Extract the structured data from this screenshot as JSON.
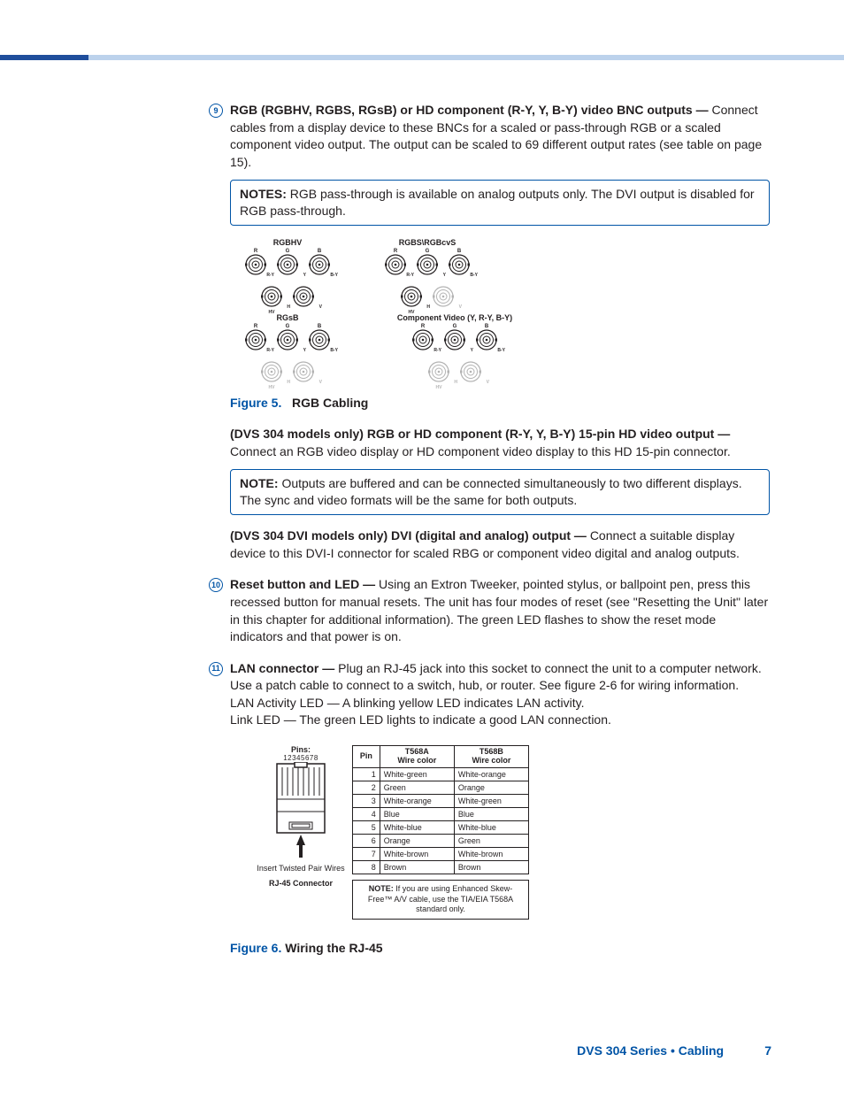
{
  "item9": {
    "heading": "RGB (RGBHV, RGBS, RGsB) or HD component (R-Y, Y, B-Y) video BNC outputs —",
    "body": "Connect cables from a display device to these BNCs for a scaled or pass-through RGB or a scaled component video output. The output can be scaled to 69 different output rates (see table on page 15)."
  },
  "note1": {
    "label": "NOTES:",
    "text": "RGB pass-through is available on analog outputs only. The DVI output is disabled for RGB pass-through."
  },
  "bnc": {
    "groups": [
      {
        "title": "RGBHV",
        "rows": [
          [
            {
              "top": "R",
              "br": "R-Y",
              "off": false
            },
            {
              "top": "G",
              "br": "Y",
              "off": false
            },
            {
              "top": "B",
              "br": "B-Y",
              "off": false
            }
          ],
          [
            {
              "top": "",
              "br": "H",
              "b": "HV",
              "off": false
            },
            {
              "top": "",
              "br": "V",
              "off": false
            }
          ]
        ]
      },
      {
        "title": "RGBS\\RGBcvS",
        "rows": [
          [
            {
              "top": "R",
              "br": "R-Y",
              "off": false
            },
            {
              "top": "G",
              "br": "Y",
              "off": false
            },
            {
              "top": "B",
              "br": "B-Y",
              "off": false
            }
          ],
          [
            {
              "top": "",
              "br": "H",
              "b": "HV",
              "off": false
            },
            {
              "top": "",
              "br": "V",
              "off": true
            }
          ]
        ]
      },
      {
        "title": "RGsB",
        "rows": [
          [
            {
              "top": "R",
              "br": "R-Y",
              "off": false
            },
            {
              "top": "G",
              "br": "Y",
              "off": false
            },
            {
              "top": "B",
              "br": "B-Y",
              "off": false
            }
          ],
          [
            {
              "top": "",
              "br": "H",
              "b": "HV",
              "off": true
            },
            {
              "top": "",
              "br": "V",
              "off": true
            }
          ]
        ]
      },
      {
        "title": "Component Video (Y, R-Y, B-Y)",
        "rows": [
          [
            {
              "top": "R",
              "br": "R-Y",
              "off": false
            },
            {
              "top": "G",
              "br": "Y",
              "off": false
            },
            {
              "top": "B",
              "br": "B-Y",
              "off": false
            }
          ],
          [
            {
              "top": "",
              "br": "H",
              "b": "HV",
              "off": true
            },
            {
              "top": "",
              "br": "V",
              "off": true
            }
          ]
        ]
      }
    ]
  },
  "fig5": {
    "num": "Figure 5.",
    "title": "RGB Cabling"
  },
  "dvs304": {
    "heading": "(DVS 304 models only) RGB or HD component (R-Y, Y, B-Y) 15-pin HD video output —",
    "body": "Connect an RGB video display or HD component video display to this HD 15-pin connector."
  },
  "note2": {
    "label": "NOTE:",
    "text": "Outputs are buffered and can be connected simultaneously to two different displays. The sync and video formats will be the same for both outputs."
  },
  "dvi": {
    "heading": "(DVS 304 DVI models only) DVI (digital and analog) output —",
    "body": "Connect a suitable display device to this DVI-I connector for scaled RBG or component video digital and analog outputs."
  },
  "item10": {
    "heading": "Reset button and LED —",
    "body": "Using an Extron Tweeker, pointed stylus, or ballpoint pen, press this recessed button for manual resets. The unit has four modes of reset (see \"Resetting the Unit\" later in this chapter for additional information). The green LED flashes to show the reset mode indicators and that power is on."
  },
  "item11": {
    "heading": "LAN connector —",
    "body": "Plug an RJ-45 jack into this socket to connect the unit to a computer network. Use a patch cable to connect to a switch, hub, or router. See figure 2-6 for wiring information.",
    "line2": "LAN Activity LED — A blinking yellow LED indicates LAN activity.",
    "line3": "Link LED — The green LED lights to indicate a good LAN connection."
  },
  "rj45": {
    "pins_label": "Pins:",
    "pin_nums": "12345678",
    "insert": "Insert Twisted Pair Wires",
    "connector": "RJ-45 Connector",
    "headers": {
      "pin": "Pin",
      "a": "T568A Wire color",
      "b": "T568B Wire color"
    },
    "rows": [
      {
        "pin": "1",
        "a": "White-green",
        "b": "White-orange"
      },
      {
        "pin": "2",
        "a": "Green",
        "b": "Orange"
      },
      {
        "pin": "3",
        "a": "White-orange",
        "b": "White-green"
      },
      {
        "pin": "4",
        "a": "Blue",
        "b": "Blue"
      },
      {
        "pin": "5",
        "a": "White-blue",
        "b": "White-blue"
      },
      {
        "pin": "6",
        "a": "Orange",
        "b": "Green"
      },
      {
        "pin": "7",
        "a": "White-brown",
        "b": "White-brown"
      },
      {
        "pin": "8",
        "a": "Brown",
        "b": "Brown"
      }
    ],
    "note_label": "NOTE:",
    "note_text": "If you are using Enhanced Skew-Free™ A/V cable, use the TIA/EIA T568A standard only."
  },
  "fig6": {
    "num": "Figure 6.",
    "title": "Wiring the RJ-45"
  },
  "footer": {
    "text": "DVS 304 Series • Cabling",
    "page": "7"
  },
  "colors": {
    "accent": "#0054a6",
    "text": "#231f20"
  }
}
